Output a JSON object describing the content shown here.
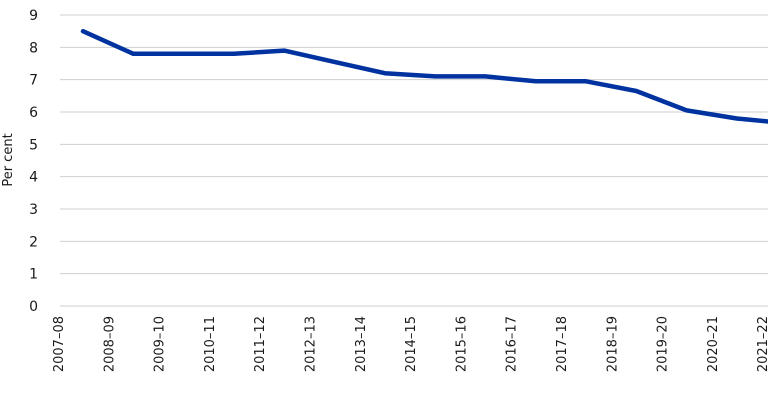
{
  "chart_data": {
    "type": "line",
    "title": "",
    "xlabel": "",
    "ylabel": "Per cent",
    "ylim": [
      0,
      9
    ],
    "yticks": [
      0,
      1,
      2,
      3,
      4,
      5,
      6,
      7,
      8,
      9
    ],
    "grid": true,
    "legend": "none",
    "categories": [
      "2007–08",
      "2008–09",
      "2009–10",
      "2010–11",
      "2011–12",
      "2012–13",
      "2013–14",
      "2014–15",
      "2015–16",
      "2016–17",
      "2017–18",
      "2018–19",
      "2019–20",
      "2020–21",
      "2021–22"
    ],
    "series": [
      {
        "color": "#0033a0",
        "values": [
          8.5,
          7.8,
          7.8,
          7.8,
          7.9,
          7.55,
          7.2,
          7.1,
          7.1,
          6.95,
          6.95,
          6.65,
          6.05,
          5.8,
          5.65
        ]
      }
    ]
  }
}
